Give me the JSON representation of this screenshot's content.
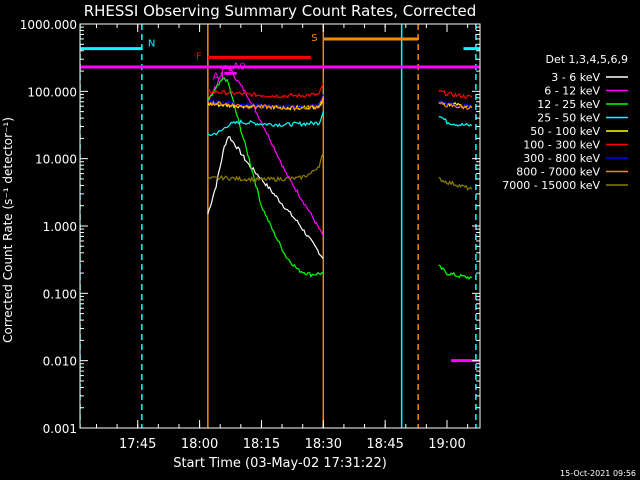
{
  "chart_data": {
    "type": "line",
    "title": "RHESSI Observing Summary Count Rates, Corrected",
    "ylabel": "Corrected Count Rate (s⁻¹ detector⁻¹)",
    "xlabel": "Start Time (03-May-02 17:31:22)",
    "timestamp": "15-Oct-2021 09:56",
    "y_scale": "log",
    "ylim": [
      0.001,
      1000
    ],
    "xlim": [
      "17:31",
      "19:08"
    ],
    "x_ticks": [
      "17:45",
      "18:00",
      "18:15",
      "18:30",
      "18:45",
      "19:00"
    ],
    "y_ticks": [
      "0.001",
      "0.010",
      "0.100",
      "1.000",
      "10.000",
      "100.000",
      "1000.000"
    ],
    "legend_title": "Det 1,3,4,5,6,9",
    "legend_position": "right",
    "series": [
      {
        "name": "3 - 6 keV",
        "color": "#ffffff",
        "points": [
          [
            "18:02",
            1.5
          ],
          [
            "18:04",
            4
          ],
          [
            "18:06",
            15
          ],
          [
            "18:07",
            22
          ],
          [
            "18:09",
            15
          ],
          [
            "18:12",
            8
          ],
          [
            "18:15",
            5
          ],
          [
            "18:18",
            3
          ],
          [
            "18:21",
            1.8
          ],
          [
            "18:24",
            1.1
          ],
          [
            "18:27",
            0.6
          ],
          [
            "18:30",
            0.33
          ]
        ]
      },
      {
        "name": "6 - 12 keV",
        "color": "#ff00ff",
        "points": [
          [
            "18:02",
            70
          ],
          [
            "18:04",
            120
          ],
          [
            "18:06",
            230
          ],
          [
            "18:07",
            230
          ],
          [
            "18:09",
            150
          ],
          [
            "18:12",
            80
          ],
          [
            "18:15",
            35
          ],
          [
            "18:18",
            15
          ],
          [
            "18:21",
            6
          ],
          [
            "18:24",
            3
          ],
          [
            "18:27",
            1.5
          ],
          [
            "18:30",
            0.7
          ]
        ]
      },
      {
        "name": "12 - 25 keV",
        "color": "#00ff00",
        "points": [
          [
            "18:02",
            70
          ],
          [
            "18:04",
            110
          ],
          [
            "18:06",
            160
          ],
          [
            "18:07",
            130
          ],
          [
            "18:09",
            45
          ],
          [
            "18:12",
            10
          ],
          [
            "18:15",
            2
          ],
          [
            "18:18",
            0.8
          ],
          [
            "18:21",
            0.35
          ],
          [
            "18:24",
            0.22
          ],
          [
            "18:27",
            0.19
          ],
          [
            "18:30",
            0.2
          ]
        ],
        "points_2": [
          [
            "18:58",
            0.25
          ],
          [
            "19:00",
            0.2
          ],
          [
            "19:03",
            0.18
          ],
          [
            "19:06",
            0.17
          ]
        ]
      },
      {
        "name": "25 - 50 keV",
        "color": "#00ffff",
        "points": [
          [
            "18:02",
            22
          ],
          [
            "18:05",
            25
          ],
          [
            "18:07",
            32
          ],
          [
            "18:10",
            35
          ],
          [
            "18:15",
            33
          ],
          [
            "18:20",
            32
          ],
          [
            "18:25",
            33
          ],
          [
            "18:29",
            34
          ],
          [
            "18:30",
            50
          ]
        ],
        "points_2": [
          [
            "18:58",
            45
          ],
          [
            "19:00",
            35
          ],
          [
            "19:03",
            32
          ],
          [
            "19:06",
            31
          ]
        ]
      },
      {
        "name": "50 - 100 keV",
        "color": "#ffff00",
        "points": [
          [
            "18:02",
            65
          ],
          [
            "18:07",
            62
          ],
          [
            "18:12",
            60
          ],
          [
            "18:18",
            58
          ],
          [
            "18:24",
            57
          ],
          [
            "18:29",
            60
          ],
          [
            "18:30",
            80
          ]
        ],
        "points_2": [
          [
            "18:58",
            70
          ],
          [
            "19:00",
            66
          ],
          [
            "19:03",
            62
          ],
          [
            "19:06",
            58
          ]
        ]
      },
      {
        "name": "100 - 300 keV",
        "color": "#ff0000",
        "points": [
          [
            "18:02",
            100
          ],
          [
            "18:07",
            95
          ],
          [
            "18:12",
            90
          ],
          [
            "18:18",
            86
          ],
          [
            "18:24",
            86
          ],
          [
            "18:29",
            90
          ],
          [
            "18:30",
            130
          ]
        ],
        "points_2": [
          [
            "18:58",
            100
          ],
          [
            "19:00",
            92
          ],
          [
            "19:03",
            86
          ],
          [
            "19:06",
            82
          ]
        ]
      },
      {
        "name": "300 - 800 keV",
        "color": "#0000ff",
        "points": [
          [
            "18:02",
            72
          ],
          [
            "18:07",
            68
          ],
          [
            "18:12",
            63
          ],
          [
            "18:18",
            60
          ],
          [
            "18:24",
            58
          ],
          [
            "18:29",
            62
          ],
          [
            "18:30",
            90
          ]
        ],
        "points_2": [
          [
            "18:58",
            72
          ],
          [
            "19:00",
            65
          ],
          [
            "19:03",
            61
          ],
          [
            "19:06",
            60
          ]
        ]
      },
      {
        "name": "800 - 7000 keV",
        "color": "#ff8800",
        "points": [
          [
            "18:02",
            68
          ],
          [
            "18:07",
            64
          ],
          [
            "18:12",
            60
          ],
          [
            "18:18",
            58
          ],
          [
            "18:24",
            56
          ],
          [
            "18:29",
            60
          ],
          [
            "18:30",
            85
          ]
        ],
        "points_2": [
          [
            "18:58",
            66
          ],
          [
            "19:00",
            62
          ],
          [
            "19:03",
            59
          ],
          [
            "19:06",
            57
          ]
        ]
      },
      {
        "name": "7000 - 15000 keV",
        "color": "#8b7d00",
        "points": [
          [
            "18:02",
            5
          ],
          [
            "18:06",
            5.2
          ],
          [
            "18:10",
            5
          ],
          [
            "18:15",
            4.9
          ],
          [
            "18:20",
            5
          ],
          [
            "18:24",
            5.1
          ],
          [
            "18:27",
            6
          ],
          [
            "18:29",
            8
          ],
          [
            "18:30",
            12
          ]
        ],
        "points_2": [
          [
            "18:58",
            5
          ],
          [
            "19:00",
            4.5
          ],
          [
            "19:03",
            4
          ],
          [
            "19:06",
            3.5
          ]
        ]
      }
    ],
    "flag_lines": [
      {
        "label": "N",
        "color": "#00ffff",
        "value": 430,
        "segments": [
          [
            "17:31",
            "17:46"
          ],
          [
            "19:04",
            "19:08"
          ]
        ]
      },
      {
        "label": "S",
        "color": "#ff8800",
        "value": 600,
        "segments": [
          [
            "18:30",
            "18:53"
          ]
        ]
      },
      {
        "label": "F",
        "color": "#ff0000",
        "value": 320,
        "segments": [
          [
            "18:02",
            "18:27"
          ]
        ]
      },
      {
        "label": "A1",
        "color": "#ff00ff",
        "value": 185,
        "segments": [
          [
            "18:06",
            "18:09"
          ]
        ]
      },
      {
        "label": "A0",
        "color": "#ff00ff",
        "value": 225,
        "segments": [
          [
            "18:05",
            "18:08"
          ]
        ]
      },
      {
        "label": "",
        "color": "#ff00ff",
        "value": 230,
        "segments": [
          [
            "17:31",
            "19:08"
          ]
        ]
      },
      {
        "label": "",
        "color": "#ff00ff",
        "value": 0.01,
        "segments": [
          [
            "19:01",
            "19:08"
          ]
        ]
      }
    ],
    "vertical_markers": [
      {
        "time": "17:31",
        "color": "#00ffff",
        "style": "dashed"
      },
      {
        "time": "17:46",
        "color": "#00ffff",
        "style": "dashed"
      },
      {
        "time": "18:02",
        "color": "#ff8800",
        "style": "solid"
      },
      {
        "time": "18:30",
        "color": "#ff8800",
        "style": "solid"
      },
      {
        "time": "18:49",
        "color": "#00ffff",
        "style": "solid"
      },
      {
        "time": "18:53",
        "color": "#ff8800",
        "style": "dashed"
      },
      {
        "time": "19:07",
        "color": "#00ffff",
        "style": "dashed"
      }
    ]
  }
}
